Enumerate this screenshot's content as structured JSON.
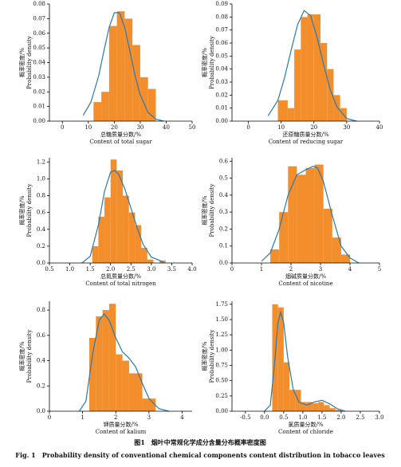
{
  "chart_data": [
    {
      "type": "histogram",
      "color": "#f28e2b",
      "bins": [
        12,
        15,
        18,
        21,
        24,
        27,
        30,
        33,
        36
      ],
      "values": [
        0.013,
        0.02,
        0.065,
        0.075,
        0.07,
        0.052,
        0.03,
        0.022
      ],
      "curve": {
        "color": "#2a7ab0",
        "x": [
          8,
          11,
          14,
          16,
          18,
          20,
          22,
          24,
          26,
          28,
          30,
          33,
          36,
          39
        ],
        "values": [
          0.004,
          0.013,
          0.031,
          0.048,
          0.064,
          0.074,
          0.074,
          0.064,
          0.048,
          0.031,
          0.018,
          0.006,
          0.0014,
          0
        ]
      },
      "xlim": [
        -5,
        50
      ],
      "ylim": [
        0,
        0.08
      ],
      "xticks": [
        0,
        10,
        20,
        30,
        40,
        50
      ],
      "yticks": [
        {
          "value": 0,
          "label": "0.00"
        },
        0.01,
        0.02,
        0.03,
        0.04,
        0.05,
        0.06,
        0.07,
        0.08
      ],
      "ylabel": [
        "概率密度/%",
        "Probability density"
      ],
      "xlabel": [
        "总糖质量分数/%",
        "Content of total sugar"
      ]
    },
    {
      "type": "histogram",
      "color": "#f28e2b",
      "bins": [
        9,
        12,
        14,
        16,
        18,
        20,
        22,
        24,
        26,
        28,
        30
      ],
      "values": [
        0.016,
        0.01,
        0.055,
        0.08,
        0.082,
        0.082,
        0.06,
        0.04,
        0.02,
        0.01
      ],
      "curve": {
        "color": "#2a7ab0",
        "x": [
          6,
          9,
          11,
          13,
          15,
          17,
          19,
          21,
          23,
          25,
          27,
          30,
          33
        ],
        "values": [
          0.004,
          0.016,
          0.033,
          0.054,
          0.074,
          0.085,
          0.081,
          0.064,
          0.043,
          0.024,
          0.011,
          0.002,
          0
        ]
      },
      "xlim": [
        -5,
        40
      ],
      "ylim": [
        0,
        0.09
      ],
      "xticks": [
        0,
        10,
        20,
        30,
        40
      ],
      "yticks": [
        {
          "value": 0,
          "label": "0.00"
        },
        0.01,
        0.02,
        0.03,
        0.04,
        0.05,
        0.06,
        0.07,
        0.08,
        0.09
      ],
      "ylabel": [
        "概率密度/%",
        "Probability density"
      ],
      "xlabel": [
        "还原糖质量分数/%",
        "Content of reducing sugar"
      ]
    },
    {
      "type": "histogram",
      "color": "#f28e2b",
      "bins": [
        1.55,
        1.7,
        1.85,
        2.0,
        2.15,
        2.3,
        2.45,
        2.6,
        2.75,
        2.9,
        3.05,
        3.2,
        3.35
      ],
      "values": [
        0.2,
        0.55,
        0.78,
        1.23,
        1.1,
        0.8,
        0.6,
        0.45,
        0.18,
        0.04,
        0,
        0.03
      ],
      "curve": {
        "color": "#2a7ab0",
        "x": [
          1.3,
          1.5,
          1.7,
          1.85,
          2.0,
          2.1,
          2.2,
          2.35,
          2.5,
          2.65,
          2.8,
          3.0,
          3.3
        ],
        "values": [
          0,
          0.08,
          0.45,
          0.85,
          1.08,
          1.1,
          1.05,
          0.88,
          0.65,
          0.42,
          0.22,
          0.07,
          0.01
        ]
      },
      "xlim": [
        0.5,
        4.0
      ],
      "ylim": [
        0,
        1.25
      ],
      "xticks": [
        0.5,
        {
          "value": 1,
          "label": "1.0"
        },
        1.5,
        {
          "value": 2,
          "label": "2.0"
        },
        2.5,
        {
          "value": 3,
          "label": "3.0"
        },
        3.5,
        {
          "value": 4,
          "label": "4.0"
        }
      ],
      "yticks": [
        {
          "value": 0,
          "label": "0.0"
        },
        0.2,
        0.4,
        0.6,
        0.8,
        {
          "value": 1,
          "label": "1.0"
        },
        1.2
      ],
      "ylabel": [
        "概率密度/%",
        "Probability density"
      ],
      "xlabel": [
        "总氮质量分数/%",
        "Content of total nitrogen"
      ]
    },
    {
      "type": "histogram",
      "color": "#f28e2b",
      "bins": [
        1.3,
        1.6,
        1.9,
        2.2,
        2.5,
        2.8,
        3.1,
        3.4,
        3.7,
        4.0
      ],
      "values": [
        0.08,
        0.3,
        0.57,
        0.52,
        0.56,
        0.58,
        0.32,
        0.15,
        0.05
      ],
      "curve": {
        "color": "#2a7ab0",
        "x": [
          1.0,
          1.3,
          1.6,
          1.9,
          2.2,
          2.5,
          2.75,
          2.9,
          3.1,
          3.4,
          3.7,
          4.0,
          4.3
        ],
        "values": [
          0.01,
          0.06,
          0.2,
          0.4,
          0.52,
          0.55,
          0.57,
          0.56,
          0.48,
          0.28,
          0.1,
          0.03,
          0
        ]
      },
      "xlim": [
        0,
        5
      ],
      "ylim": [
        0,
        0.62
      ],
      "xticks": [
        0,
        1,
        2,
        3,
        4,
        5
      ],
      "yticks": [
        {
          "value": 0,
          "label": "0.0"
        },
        0.1,
        0.2,
        0.3,
        0.4,
        0.5,
        0.6
      ],
      "ylabel": [
        "概率密度/%",
        "Probability density"
      ],
      "xlabel": [
        "烟碱质量分数/%",
        "Content of nicotine"
      ]
    },
    {
      "type": "histogram",
      "color": "#f28e2b",
      "bins": [
        1.2,
        1.4,
        1.6,
        1.8,
        2.0,
        2.2,
        2.4,
        2.8,
        3.2
      ],
      "values": [
        0.58,
        0.75,
        0.8,
        0.85,
        0.45,
        0.4,
        0.3,
        0.1
      ],
      "curve": {
        "color": "#2a7ab0",
        "x": [
          0.9,
          1.1,
          1.3,
          1.5,
          1.65,
          1.8,
          2.0,
          2.2,
          2.4,
          2.6,
          2.8,
          3.0,
          3.3,
          3.6
        ],
        "values": [
          0,
          0.08,
          0.45,
          0.72,
          0.77,
          0.72,
          0.58,
          0.47,
          0.42,
          0.35,
          0.22,
          0.1,
          0.02,
          0
        ]
      },
      "xlim": [
        0,
        4.3
      ],
      "ylim": [
        0,
        0.87
      ],
      "xticks": [
        0,
        1,
        2,
        3,
        4
      ],
      "yticks": [
        {
          "value": 0,
          "label": "0.0"
        },
        0.2,
        0.4,
        0.6,
        0.8
      ],
      "ylabel": [
        "概率密度/%",
        "Probability density"
      ],
      "xlabel": [
        "钾质量分数/%",
        "Content of kalium"
      ]
    },
    {
      "type": "histogram",
      "color": "#f28e2b",
      "bins": [
        0.2,
        0.35,
        0.5,
        0.65,
        0.8,
        0.95,
        1.1,
        1.25,
        1.4,
        1.55,
        1.7,
        1.85,
        2.0
      ],
      "values": [
        1.75,
        1.7,
        0.8,
        0.35,
        0.35,
        0.15,
        0.15,
        0.13,
        0.15,
        0.1,
        0.05,
        0.02
      ],
      "curve": {
        "color": "#2a7ab0",
        "x": [
          0,
          0.15,
          0.25,
          0.35,
          0.42,
          0.5,
          0.6,
          0.75,
          0.9,
          1.1,
          1.3,
          1.5,
          1.7,
          1.9,
          2.1
        ],
        "values": [
          0,
          0.1,
          0.7,
          1.45,
          1.62,
          1.45,
          0.9,
          0.35,
          0.15,
          0.1,
          0.15,
          0.18,
          0.12,
          0.04,
          0
        ]
      },
      "xlim": [
        -0.85,
        3.0
      ],
      "ylim": [
        0,
        1.8
      ],
      "xticks": [
        -0.5,
        {
          "value": 0,
          "label": "0.0"
        },
        0.5,
        {
          "value": 1,
          "label": "1.0"
        },
        1.5,
        {
          "value": 2,
          "label": "2.0"
        },
        2.5,
        {
          "value": 3,
          "label": "3.0"
        }
      ],
      "yticks": [
        {
          "value": 0,
          "label": "0.00"
        },
        0.25,
        {
          "value": 0.5,
          "label": "0.50"
        },
        0.75,
        {
          "value": 1,
          "label": "1.00"
        },
        1.25,
        {
          "value": 1.5,
          "label": "1.50"
        },
        1.75
      ],
      "ylabel": [
        "概率密度/%",
        "Probability density"
      ],
      "xlabel": [
        "氯质量分数/%",
        "Content of chloride"
      ]
    }
  ],
  "caption": {
    "cn": "图1　烟叶中常规化学成分含量分布概率密度图",
    "en": "Fig. 1　Probability density of conventional chemical components content distribution in tobacco leaves"
  }
}
